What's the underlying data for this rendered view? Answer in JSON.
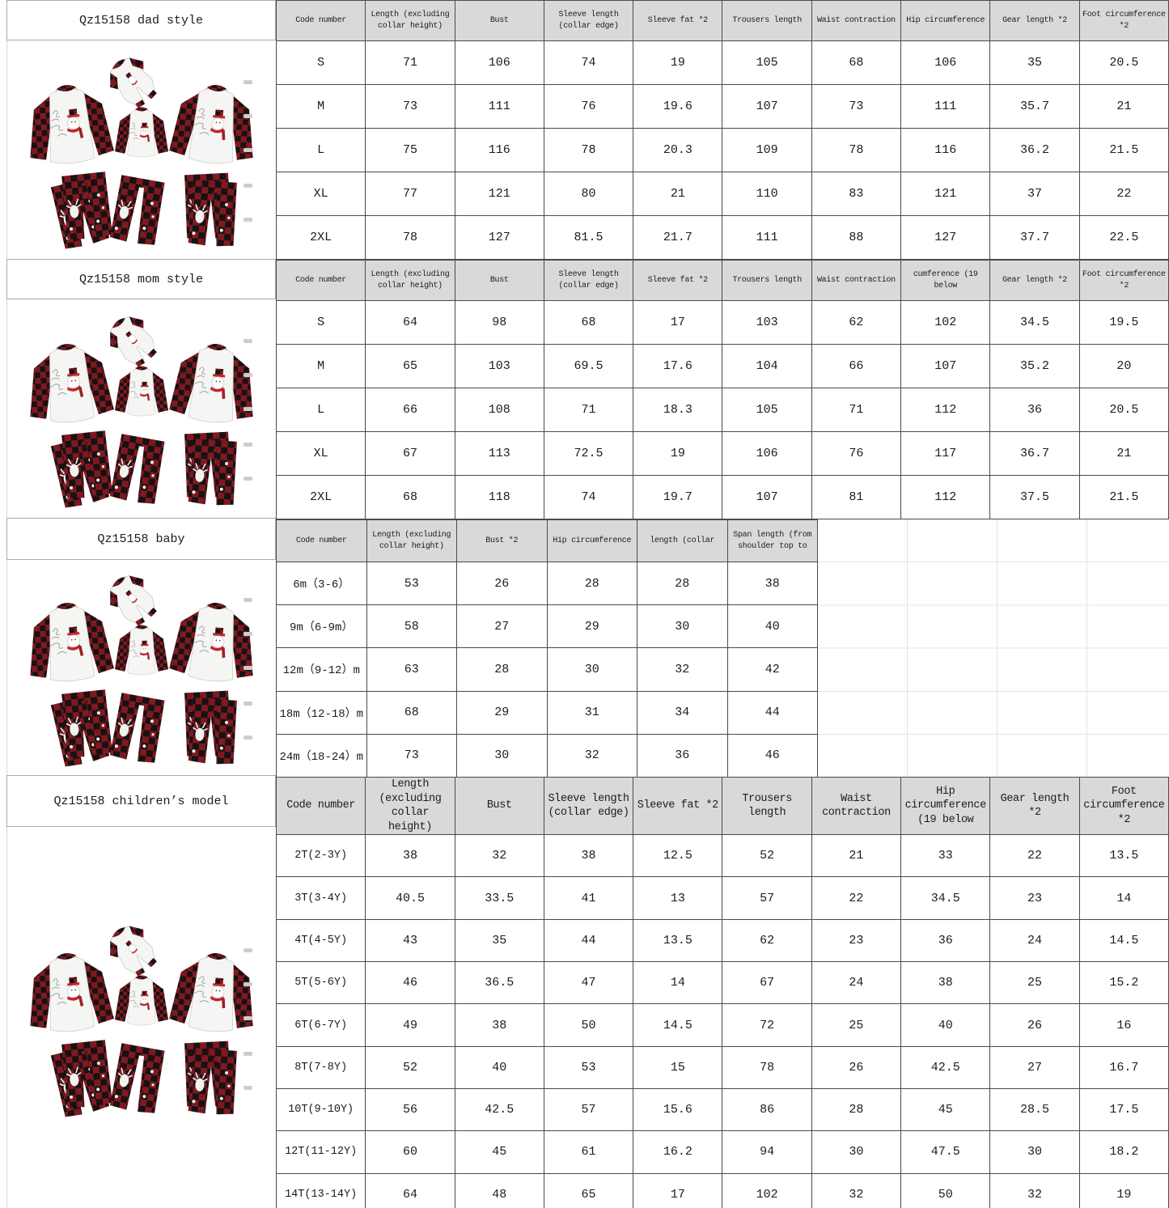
{
  "sections": [
    {
      "id": "dad",
      "title": "Qz15158 dad style",
      "table": {
        "headers": [
          "Code number",
          "Length (excluding collar height)",
          "Bust",
          "Sleeve length (collar edge)",
          "Sleeve fat *2",
          "Trousers length",
          "Waist contraction",
          "Hip circumference",
          "Gear length *2",
          "Foot circumference *2"
        ],
        "rows": [
          [
            "S",
            "71",
            "106",
            "74",
            "19",
            "105",
            "68",
            "106",
            "35",
            "20.5"
          ],
          [
            "M",
            "73",
            "111",
            "76",
            "19.6",
            "107",
            "73",
            "111",
            "35.7",
            "21"
          ],
          [
            "L",
            "75",
            "116",
            "78",
            "20.3",
            "109",
            "78",
            "116",
            "36.2",
            "21.5"
          ],
          [
            "XL",
            "77",
            "121",
            "80",
            "21",
            "110",
            "83",
            "121",
            "37",
            "22"
          ],
          [
            "2XL",
            "78",
            "127",
            "81.5",
            "21.7",
            "111",
            "88",
            "127",
            "37.7",
            "22.5"
          ]
        ]
      }
    },
    {
      "id": "mom",
      "title": "Qz15158 mom style",
      "table": {
        "headers": [
          "Code number",
          "Length (excluding collar height)",
          "Bust",
          "Sleeve length (collar edge)",
          "Sleeve fat *2",
          "Trousers length",
          "Waist contraction",
          "cumference (19 below",
          "Gear length *2",
          "Foot circumference *2"
        ],
        "rows": [
          [
            "S",
            "64",
            "98",
            "68",
            "17",
            "103",
            "62",
            "102",
            "34.5",
            "19.5"
          ],
          [
            "M",
            "65",
            "103",
            "69.5",
            "17.6",
            "104",
            "66",
            "107",
            "35.2",
            "20"
          ],
          [
            "L",
            "66",
            "108",
            "71",
            "18.3",
            "105",
            "71",
            "112",
            "36",
            "20.5"
          ],
          [
            "XL",
            "67",
            "113",
            "72.5",
            "19",
            "106",
            "76",
            "117",
            "36.7",
            "21"
          ],
          [
            "2XL",
            "68",
            "118",
            "74",
            "19.7",
            "107",
            "81",
            "112",
            "37.5",
            "21.5"
          ]
        ]
      }
    },
    {
      "id": "baby",
      "title": "Qz15158 baby",
      "table": {
        "headers": [
          "Code number",
          "Length (excluding collar height)",
          "Bust *2",
          "Hip circumference",
          "length (collar",
          "Span length (from shoulder top to"
        ],
        "rows": [
          [
            "6m（3-6）",
            "53",
            "26",
            "28",
            "28",
            "38"
          ],
          [
            "9m（6-9m）",
            "58",
            "27",
            "29",
            "30",
            "40"
          ],
          [
            "12m（9-12）m",
            "63",
            "28",
            "30",
            "32",
            "42"
          ],
          [
            "18m（12-18）m",
            "68",
            "29",
            "31",
            "34",
            "44"
          ],
          [
            "24m（18-24）m",
            "73",
            "30",
            "32",
            "36",
            "46"
          ]
        ]
      }
    },
    {
      "id": "children",
      "title": "Qz15158 children’s model",
      "table": {
        "headers": [
          "Code number",
          "Length (excluding collar height)",
          "Bust",
          "Sleeve length (collar edge)",
          "Sleeve fat *2",
          "Trousers length",
          "Waist contraction",
          "Hip circumference (19 below",
          "Gear length *2",
          "Foot circumference *2"
        ],
        "rows": [
          [
            "2T(2-3Y)",
            "38",
            "32",
            "38",
            "12.5",
            "52",
            "21",
            "33",
            "22",
            "13.5"
          ],
          [
            "3T(3-4Y)",
            "40.5",
            "33.5",
            "41",
            "13",
            "57",
            "22",
            "34.5",
            "23",
            "14"
          ],
          [
            "4T(4-5Y)",
            "43",
            "35",
            "44",
            "13.5",
            "62",
            "23",
            "36",
            "24",
            "14.5"
          ],
          [
            "5T(5-6Y)",
            "46",
            "36.5",
            "47",
            "14",
            "67",
            "24",
            "38",
            "25",
            "15.2"
          ],
          [
            "6T(6-7Y)",
            "49",
            "38",
            "50",
            "14.5",
            "72",
            "25",
            "40",
            "26",
            "16"
          ],
          [
            "8T(7-8Y)",
            "52",
            "40",
            "53",
            "15",
            "78",
            "26",
            "42.5",
            "27",
            "16.7"
          ],
          [
            "10T(9-10Y)",
            "56",
            "42.5",
            "57",
            "15.6",
            "86",
            "28",
            "45",
            "28.5",
            "17.5"
          ],
          [
            "12T(11-12Y)",
            "60",
            "45",
            "61",
            "16.2",
            "94",
            "30",
            "47.5",
            "30",
            "18.2"
          ],
          [
            "14T(13-14Y)",
            "64",
            "48",
            "65",
            "17",
            "102",
            "32",
            "50",
            "32",
            "19"
          ]
        ]
      }
    }
  ],
  "colors": {
    "header_bg": "#d9d9d9",
    "grid_line": "#4a4a4a",
    "plaid_red": "#c0272d",
    "plaid_black": "#191114"
  }
}
